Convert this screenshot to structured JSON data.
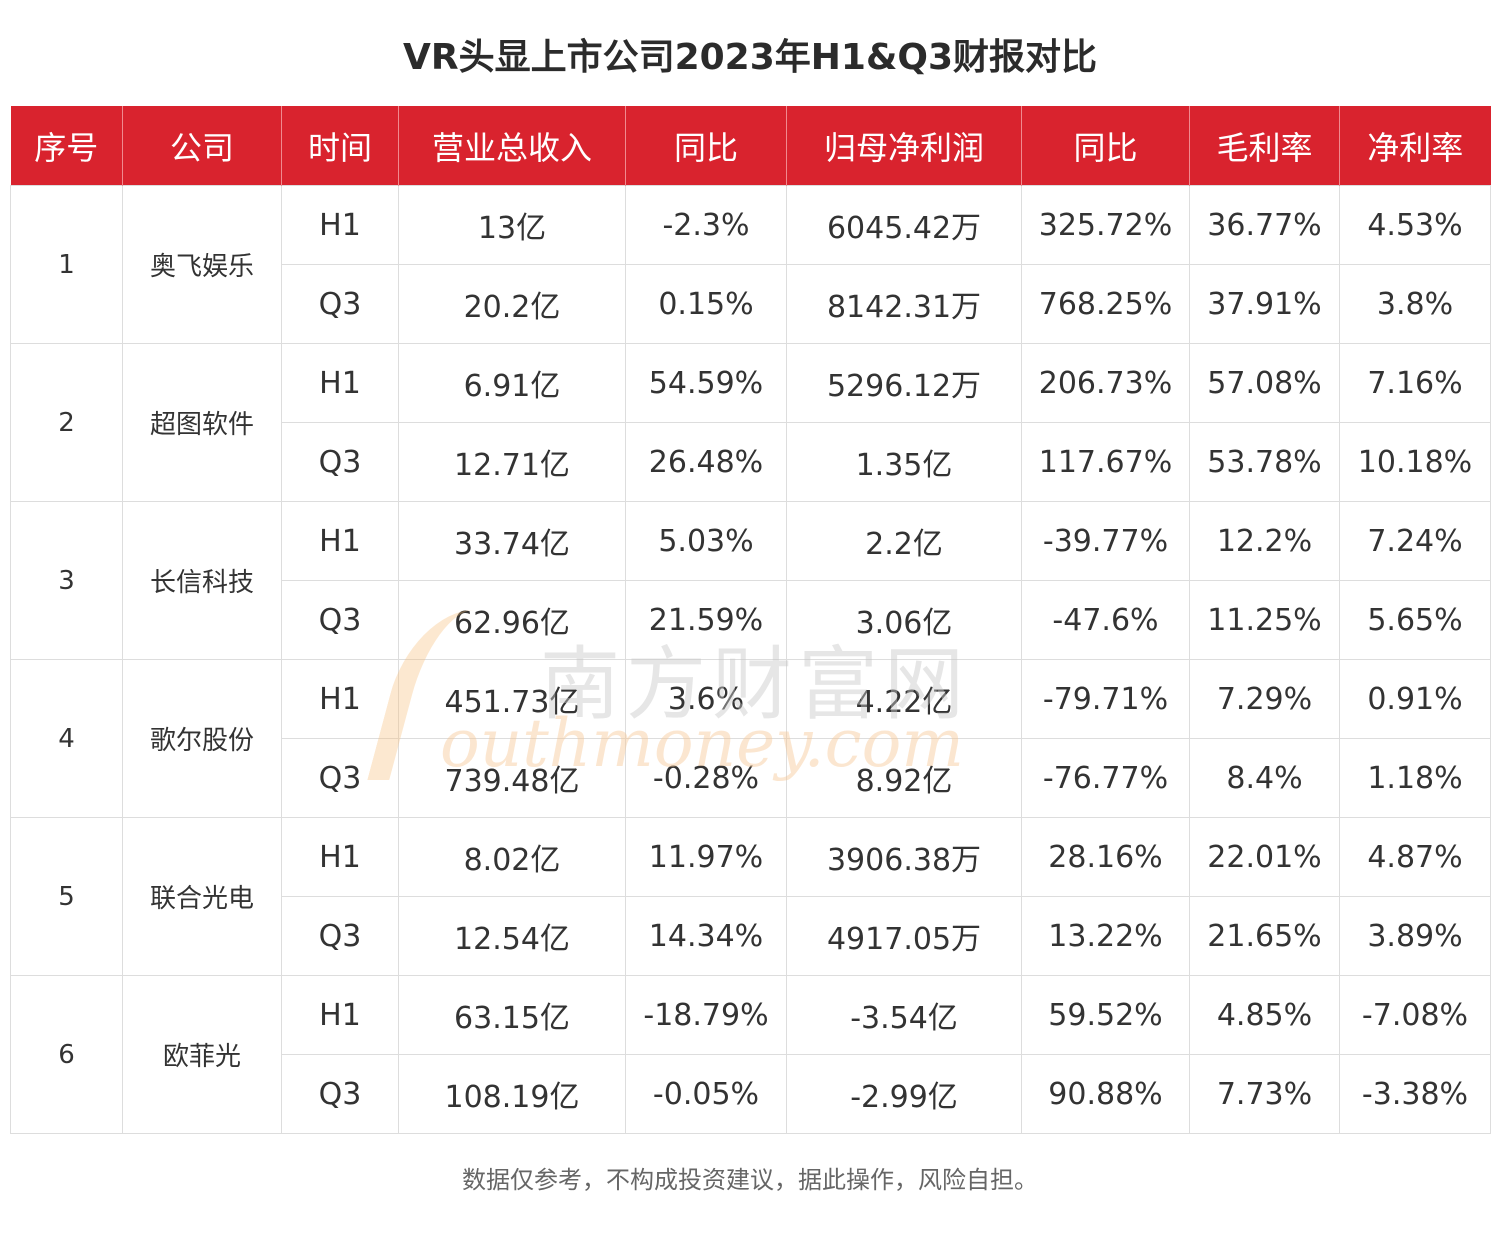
{
  "title": "VR头显上市公司2023年H1&Q3财报对比",
  "headers": [
    "序号",
    "公司",
    "时间",
    "营业总收入",
    "同比",
    "归母净利润",
    "同比",
    "毛利率",
    "净利率"
  ],
  "companies": [
    {
      "idx": "1",
      "name": "奥飞娱乐",
      "rows": [
        [
          "H1",
          "13亿",
          "-2.3%",
          "6045.42万",
          "325.72%",
          "36.77%",
          "4.53%"
        ],
        [
          "Q3",
          "20.2亿",
          "0.15%",
          "8142.31万",
          "768.25%",
          "37.91%",
          "3.8%"
        ]
      ]
    },
    {
      "idx": "2",
      "name": "超图软件",
      "rows": [
        [
          "H1",
          "6.91亿",
          "54.59%",
          "5296.12万",
          "206.73%",
          "57.08%",
          "7.16%"
        ],
        [
          "Q3",
          "12.71亿",
          "26.48%",
          "1.35亿",
          "117.67%",
          "53.78%",
          "10.18%"
        ]
      ]
    },
    {
      "idx": "3",
      "name": "长信科技",
      "rows": [
        [
          "H1",
          "33.74亿",
          "5.03%",
          "2.2亿",
          "-39.77%",
          "12.2%",
          "7.24%"
        ],
        [
          "Q3",
          "62.96亿",
          "21.59%",
          "3.06亿",
          "-47.6%",
          "11.25%",
          "5.65%"
        ]
      ]
    },
    {
      "idx": "4",
      "name": "歌尔股份",
      "rows": [
        [
          "H1",
          "451.73亿",
          "3.6%",
          "4.22亿",
          "-79.71%",
          "7.29%",
          "0.91%"
        ],
        [
          "Q3",
          "739.48亿",
          "-0.28%",
          "8.92亿",
          "-76.77%",
          "8.4%",
          "1.18%"
        ]
      ]
    },
    {
      "idx": "5",
      "name": "联合光电",
      "rows": [
        [
          "H1",
          "8.02亿",
          "11.97%",
          "3906.38万",
          "28.16%",
          "22.01%",
          "4.87%"
        ],
        [
          "Q3",
          "12.54亿",
          "14.34%",
          "4917.05万",
          "13.22%",
          "21.65%",
          "3.89%"
        ]
      ]
    },
    {
      "idx": "6",
      "name": "欧菲光",
      "rows": [
        [
          "H1",
          "63.15亿",
          "-18.79%",
          "-3.54亿",
          "59.52%",
          "4.85%",
          "-7.08%"
        ],
        [
          "Q3",
          "108.19亿",
          "-0.05%",
          "-2.99亿",
          "90.88%",
          "7.73%",
          "-3.38%"
        ]
      ]
    }
  ],
  "watermark": {
    "cn": "南方财富网",
    "en": "outhmoney.com"
  },
  "footer": "数据仅参考，不构成投资建议，据此操作，风险自担。",
  "colors": {
    "header_bg": "#d9232e",
    "header_text": "#ffffff",
    "border": "#dddddd"
  }
}
